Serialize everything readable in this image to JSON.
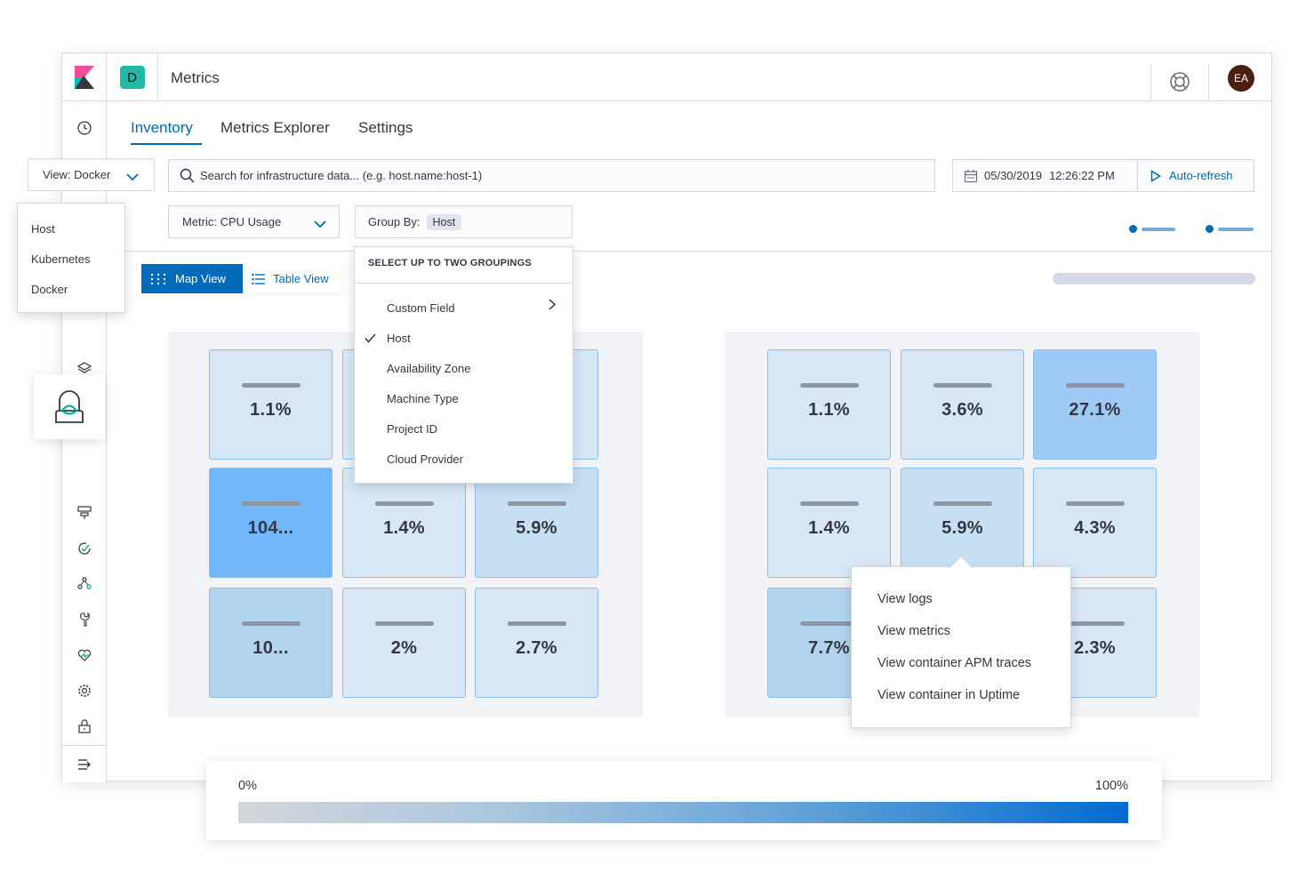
{
  "header": {
    "space_initial": "D",
    "app_title": "Metrics",
    "user_initials": "EA"
  },
  "tabs": [
    {
      "label": "Inventory",
      "active": true
    },
    {
      "label": "Metrics Explorer",
      "active": false
    },
    {
      "label": "Settings",
      "active": false
    }
  ],
  "toolbar": {
    "view_select": "View: Docker",
    "search_placeholder": "Search for infrastructure data... (e.g. host.name:host-1)",
    "date": "05/30/2019",
    "time": "12:26:22  PM",
    "auto_refresh": "Auto-refresh",
    "metric_select": "Metric: CPU Usage",
    "group_by_label": "Group By:",
    "group_by_value": "Host"
  },
  "view_menu": {
    "items": [
      "Host",
      "Kubernetes",
      "Docker"
    ]
  },
  "group_menu": {
    "title": "SELECT UP TO TWO GROUPINGS",
    "items": [
      {
        "label": "Custom Field",
        "has_submenu": true,
        "checked": false
      },
      {
        "label": "Host",
        "has_submenu": false,
        "checked": true
      },
      {
        "label": "Availability Zone",
        "has_submenu": false,
        "checked": false
      },
      {
        "label": "Machine Type",
        "has_submenu": false,
        "checked": false
      },
      {
        "label": "Project ID",
        "has_submenu": false,
        "checked": false
      },
      {
        "label": "Cloud Provider",
        "has_submenu": false,
        "checked": false
      }
    ]
  },
  "view_toggle": {
    "map_label": "Map View",
    "table_label": "Table View"
  },
  "map_left": {
    "tiles": [
      "1.1%",
      "",
      "",
      "104...",
      "1.4%",
      "5.9%",
      "10...",
      "2%",
      "2.7%"
    ]
  },
  "map_right": {
    "tiles": [
      "1.1%",
      "3.6%",
      "27.1%",
      "1.4%",
      "5.9%",
      "4.3%",
      "7.7%",
      "",
      "2.3%"
    ]
  },
  "context_menu": {
    "items": [
      "View logs",
      "View metrics",
      "View container APM traces",
      "View container in Uptime"
    ]
  },
  "legend": {
    "min_label": "0%",
    "max_label": "100%",
    "color_start": "#d3d6dc",
    "color_end": "#006bd0"
  },
  "colors": {
    "accent": "#006bb8",
    "space_badge": "#20b9a5",
    "avatar": "#4a1f12"
  }
}
